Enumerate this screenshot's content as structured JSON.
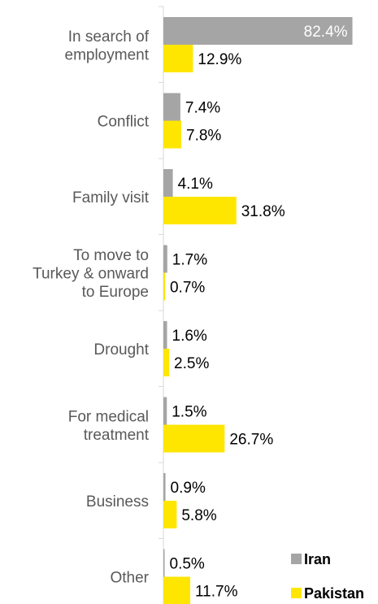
{
  "chart_data": {
    "type": "bar",
    "orientation": "horizontal",
    "categories": [
      [
        "In search of",
        "employment"
      ],
      [
        "Conflict"
      ],
      [
        "Family visit"
      ],
      [
        "To move to",
        "Turkey & onward",
        "to Europe"
      ],
      [
        "Drought"
      ],
      [
        "For medical",
        "treatment"
      ],
      [
        "Business"
      ],
      [
        "Other"
      ]
    ],
    "series": [
      {
        "name": "Iran",
        "color": "#a5a5a5",
        "values": [
          82.4,
          7.4,
          4.1,
          1.7,
          1.6,
          1.5,
          0.9,
          0.5
        ],
        "labels": [
          "82.4%",
          "7.4%",
          "4.1%",
          "1.7%",
          "1.6%",
          "1.5%",
          "0.9%",
          "0.5%"
        ]
      },
      {
        "name": "Pakistan",
        "color": "#ffe600",
        "values": [
          12.9,
          7.8,
          31.8,
          0.7,
          2.5,
          26.7,
          5.8,
          11.7
        ],
        "labels": [
          "12.9%",
          "7.8%",
          "31.8%",
          "0.7%",
          "2.5%",
          "26.7%",
          "5.8%",
          "11.7%"
        ]
      }
    ],
    "xlim": [
      0,
      100
    ],
    "grid": false,
    "legend": "bottom-right"
  }
}
